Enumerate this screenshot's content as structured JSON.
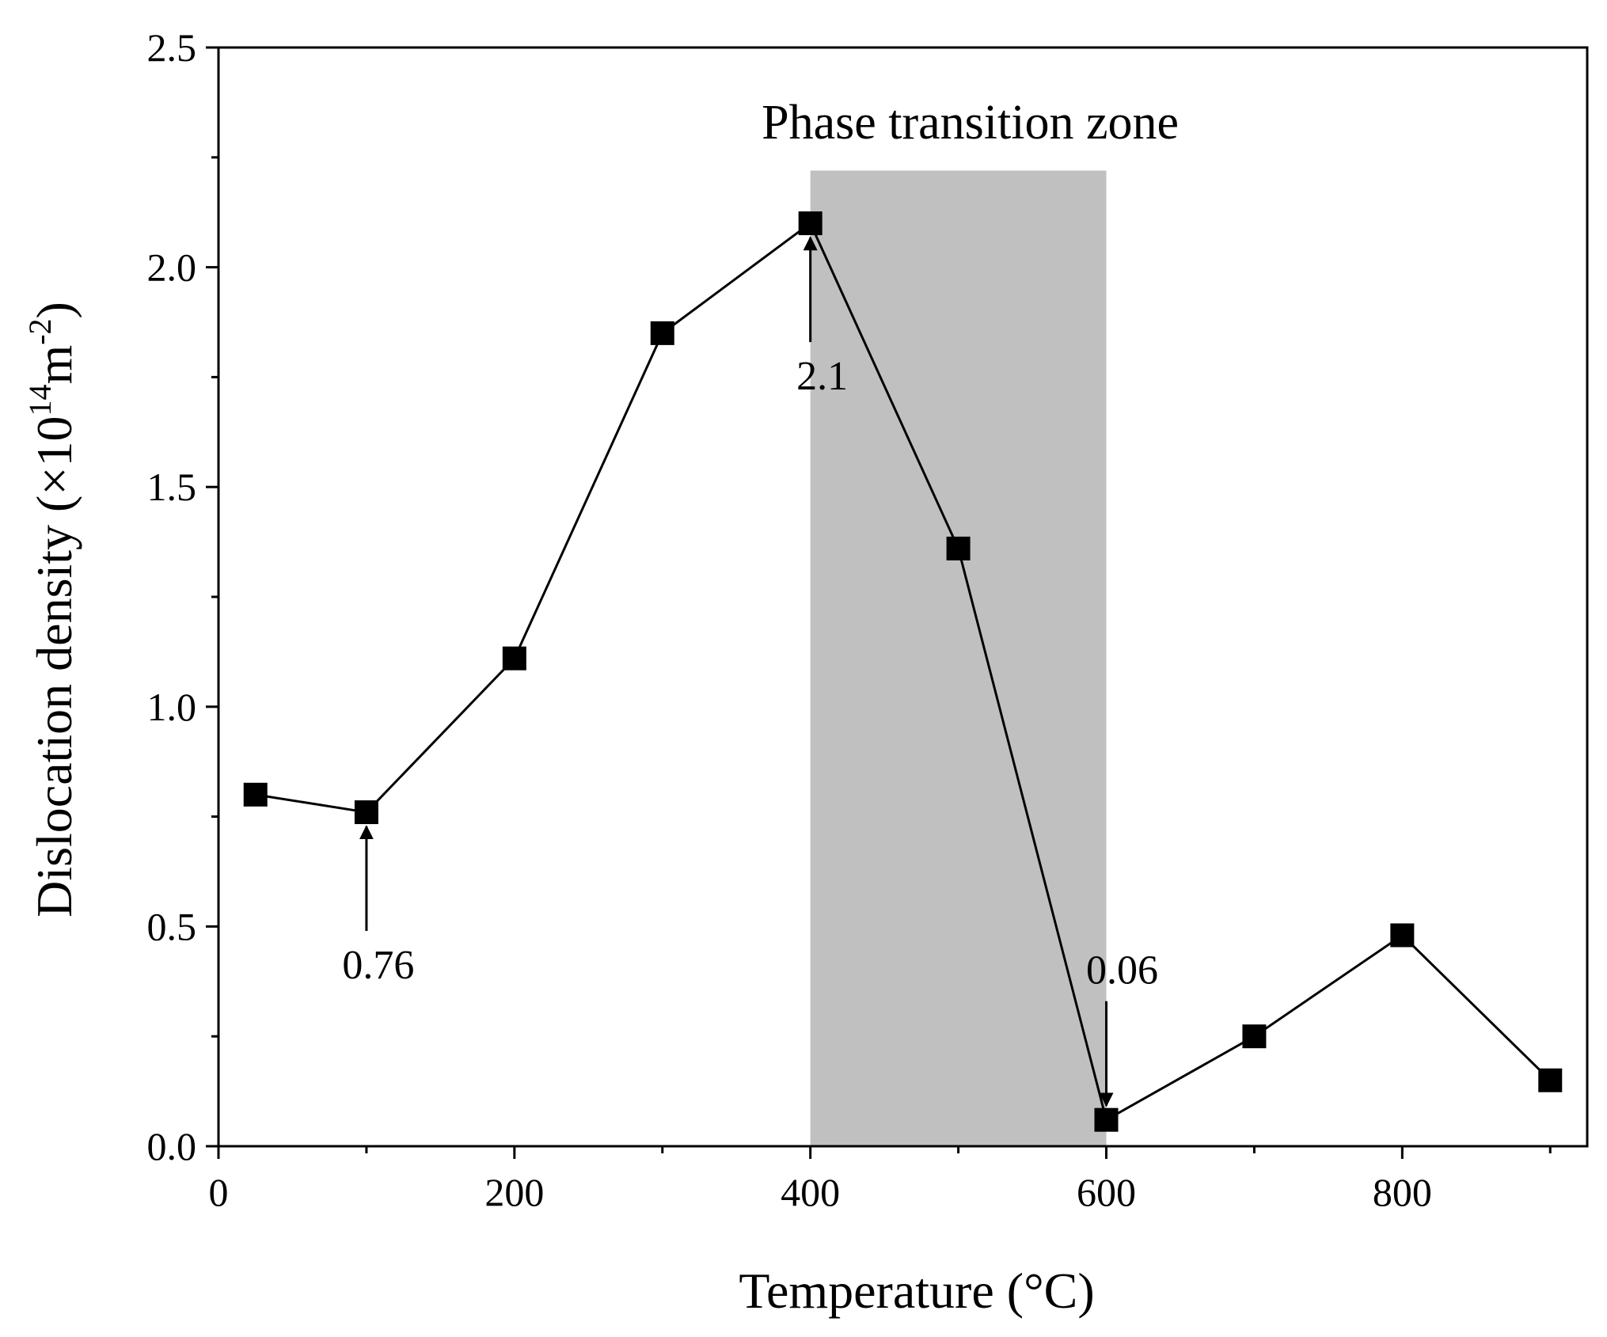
{
  "chart_data": {
    "type": "line",
    "title": "",
    "xlabel": "Temperature (°C)",
    "ylabel": {
      "main": "Dislocation density (×10",
      "sup1": "14",
      "mid": "m",
      "sup2": "-2",
      "end": ")"
    },
    "xlim": [
      0,
      925
    ],
    "ylim": [
      0,
      2.5
    ],
    "x_ticks": [
      0,
      200,
      400,
      600,
      800
    ],
    "x_tick_labels": [
      "0",
      "200",
      "400",
      "600",
      "800"
    ],
    "y_ticks": [
      0,
      0.5,
      1.0,
      1.5,
      2.0,
      2.5
    ],
    "y_tick_labels": [
      "0.0",
      "0.5",
      "1.0",
      "1.5",
      "2.0",
      "2.5"
    ],
    "series": [
      {
        "name": "Dislocation density",
        "marker": "square",
        "color": "#000000",
        "x": [
          25,
          100,
          200,
          300,
          400,
          500,
          600,
          700,
          800,
          900
        ],
        "y": [
          0.8,
          0.76,
          1.11,
          1.85,
          2.1,
          1.36,
          0.06,
          0.25,
          0.48,
          0.15
        ]
      }
    ],
    "shaded_region": {
      "label": "Phase transition zone",
      "x_range": [
        400,
        600
      ],
      "y_top": 2.22,
      "color": "#c0c0c0"
    },
    "annotations": [
      {
        "text": "0.76",
        "x": 100,
        "y": 0.76,
        "direction": "up"
      },
      {
        "text": "2.1",
        "x": 400,
        "y": 2.1,
        "direction": "up"
      },
      {
        "text": "0.06",
        "x": 600,
        "y": 0.06,
        "direction": "down"
      }
    ]
  }
}
